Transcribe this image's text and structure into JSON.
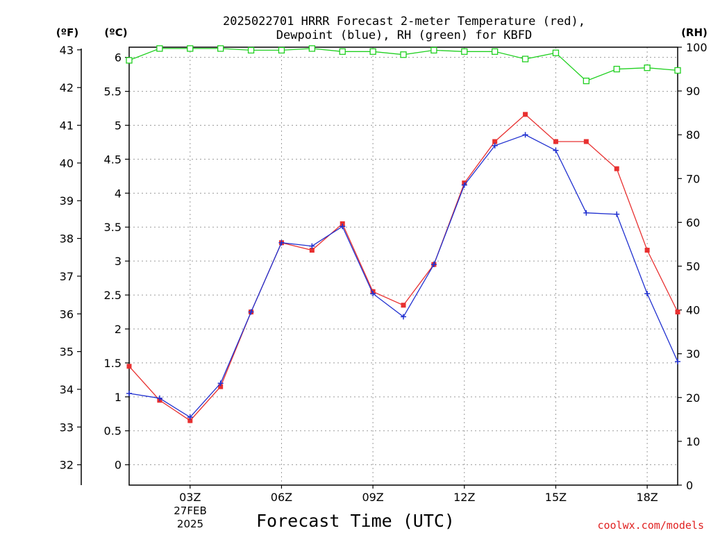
{
  "chart_data": {
    "type": "line",
    "title_line1": "2025022701 HRRR Forecast 2-meter Temperature (red),",
    "title_line2": "Dewpoint (blue), RH (green) for KBFD",
    "xlabel": "Forecast Time (UTC)",
    "ylabel_left_outer": "(ºF)",
    "ylabel_left_inner": "(ºC)",
    "ylabel_right": "(RH)",
    "footer": "coolwx.com/models",
    "x_ticks": [
      {
        "hour": 3,
        "label": "03Z"
      },
      {
        "hour": 6,
        "label": "06Z"
      },
      {
        "hour": 9,
        "label": "09Z"
      },
      {
        "hour": 12,
        "label": "12Z"
      },
      {
        "hour": 15,
        "label": "15Z"
      },
      {
        "hour": 18,
        "label": "18Z"
      }
    ],
    "date_label_line1": "27FEB",
    "date_label_line2": "2025",
    "xlim": [
      1,
      19
    ],
    "ylim_c": [
      -0.3,
      6.15
    ],
    "f_ticks": [
      "32",
      "33",
      "34",
      "35",
      "36",
      "37",
      "38",
      "39",
      "40",
      "41",
      "42",
      "43"
    ],
    "c_ticks": [
      "0",
      "0.5",
      "1",
      "1.5",
      "2",
      "2.5",
      "3",
      "3.5",
      "4",
      "4.5",
      "5",
      "5.5",
      "6"
    ],
    "rh_ticks": [
      "0",
      "10",
      "20",
      "30",
      "40",
      "50",
      "60",
      "70",
      "80",
      "90",
      "100"
    ],
    "ylim_rh": [
      0,
      100
    ],
    "hours": [
      1,
      2,
      3,
      4,
      5,
      6,
      7,
      8,
      9,
      10,
      11,
      12,
      13,
      14,
      15,
      16,
      17,
      18,
      19
    ],
    "series": [
      {
        "name": "Temperature",
        "color": "#e83030",
        "marker": "square-filled",
        "values": [
          1.45,
          0.95,
          0.65,
          1.15,
          2.25,
          3.27,
          3.16,
          3.55,
          2.55,
          2.35,
          2.95,
          4.15,
          4.76,
          5.16,
          4.76,
          4.76,
          4.36,
          3.16,
          2.25
        ]
      },
      {
        "name": "Dewpoint",
        "color": "#2030d0",
        "marker": "plus",
        "values": [
          1.05,
          0.98,
          0.7,
          1.2,
          2.25,
          3.27,
          3.22,
          3.51,
          2.52,
          2.18,
          2.95,
          4.12,
          4.7,
          4.86,
          4.63,
          3.71,
          3.69,
          2.52,
          1.52
        ]
      },
      {
        "name": "RH",
        "color": "#20d020",
        "marker": "square-open",
        "axis": "rh",
        "values": [
          97.0,
          99.7,
          99.7,
          99.7,
          99.3,
          99.3,
          99.7,
          99.0,
          99.0,
          98.3,
          99.3,
          99.0,
          99.0,
          97.3,
          98.7,
          92.3,
          95.0,
          95.3,
          94.7
        ]
      }
    ]
  }
}
